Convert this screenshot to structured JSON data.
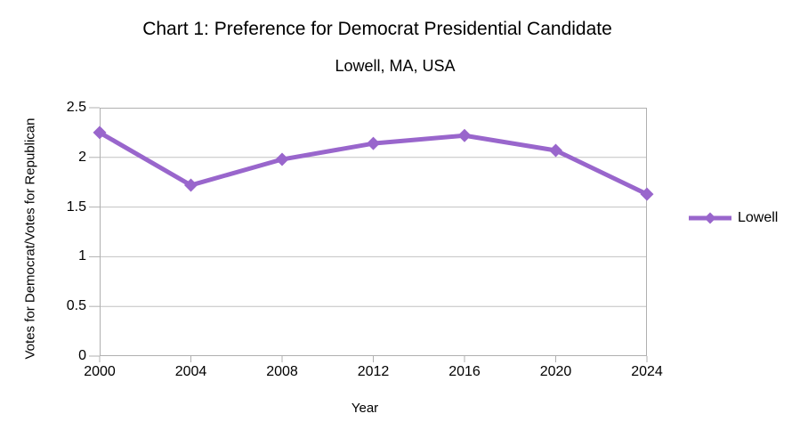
{
  "chart_data": {
    "type": "line",
    "title": "Chart 1: Preference for Democrat Presidential Candidate",
    "subtitle": "Lowell, MA, USA",
    "xlabel": "Year",
    "ylabel": "Votes for Democrat/Votes for Republican",
    "categories": [
      "2000",
      "2004",
      "2008",
      "2012",
      "2016",
      "2020",
      "2024"
    ],
    "series": [
      {
        "name": "Lowell",
        "values": [
          2.25,
          1.72,
          1.98,
          2.14,
          2.22,
          2.07,
          1.63
        ],
        "color": "#9966cc",
        "marker": "diamond",
        "line_width": 5
      }
    ],
    "ylim": [
      0,
      2.5
    ],
    "yticks": [
      0,
      0.5,
      1,
      1.5,
      2,
      2.5
    ],
    "ytick_labels": [
      "0",
      "0.5",
      "1",
      "1.5",
      "2",
      "2.5"
    ],
    "grid": true,
    "legend_position": "right",
    "colors": {
      "gridline": "#c2c2c2",
      "frame": "#b0b0b0",
      "text": "#000000",
      "background": "#ffffff"
    }
  },
  "legend": {
    "label": "Lowell"
  }
}
